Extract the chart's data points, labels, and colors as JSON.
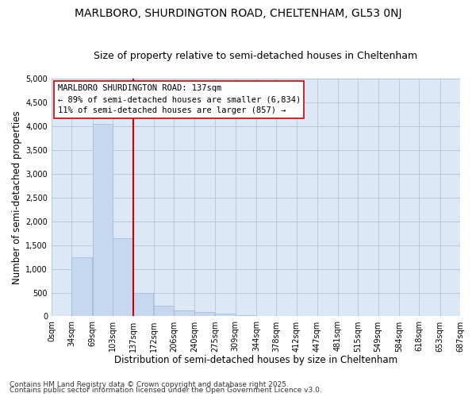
{
  "title": "MARLBORO, SHURDINGTON ROAD, CHELTENHAM, GL53 0NJ",
  "subtitle": "Size of property relative to semi-detached houses in Cheltenham",
  "xlabel": "Distribution of semi-detached houses by size in Cheltenham",
  "ylabel": "Number of semi-detached properties",
  "property_size": 137,
  "property_label": "MARLBORO SHURDINGTON ROAD: 137sqm",
  "pct_smaller": 89,
  "pct_larger": 11,
  "n_smaller": 6834,
  "n_larger": 857,
  "bin_edges": [
    0,
    34,
    69,
    103,
    137,
    172,
    206,
    240,
    275,
    309,
    344,
    378,
    412,
    447,
    481,
    515,
    549,
    584,
    618,
    653,
    687
  ],
  "bar_heights": [
    0,
    1250,
    4050,
    1650,
    500,
    230,
    130,
    90,
    50,
    20,
    5,
    3,
    2,
    1,
    1,
    1,
    0,
    0,
    0,
    0
  ],
  "bar_color": "#c5d8f0",
  "bar_edge_color": "#a0b8d8",
  "vline_color": "#cc0000",
  "legend_box_edge_color": "#cc0000",
  "plot_bg_color": "#dce8f5",
  "fig_bg_color": "#ffffff",
  "grid_color": "#b8c8dc",
  "footer_line1": "Contains HM Land Registry data © Crown copyright and database right 2025.",
  "footer_line2": "Contains public sector information licensed under the Open Government Licence v3.0.",
  "ylim": [
    0,
    5000
  ],
  "xlim_min": 0,
  "xlim_max": 687,
  "title_fontsize": 10,
  "subtitle_fontsize": 9,
  "axis_label_fontsize": 8.5,
  "tick_fontsize": 7,
  "legend_fontsize": 7.5,
  "footer_fontsize": 6.5
}
